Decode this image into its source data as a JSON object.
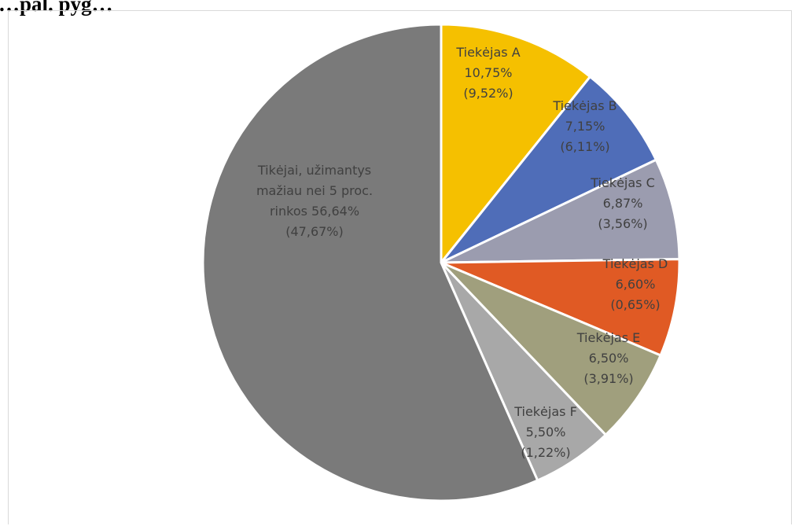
{
  "heading": "…pal. pyg…",
  "chart_data": {
    "type": "pie",
    "title": "",
    "start_angle_deg": 0,
    "direction": "clockwise",
    "slices": [
      {
        "name": "Tiekėjas A",
        "value": 10.75,
        "label_lines": [
          "Tiekėjas A",
          "10,75%",
          "(9,52%)"
        ],
        "color": "#f5c000"
      },
      {
        "name": "Tiekėjas B",
        "value": 7.15,
        "label_lines": [
          "Tiekėjas B",
          "7,15%",
          "(6,11%)"
        ],
        "color": "#4f6db8"
      },
      {
        "name": "Tiekėjas C",
        "value": 6.87,
        "label_lines": [
          "Tiekėjas C",
          "6,87%",
          "(3,56%)"
        ],
        "color": "#9b9caf"
      },
      {
        "name": "Tiekėjas D",
        "value": 6.6,
        "label_lines": [
          "Tiekėjas D",
          "6,60%",
          "(0,65%)"
        ],
        "color": "#e05a24"
      },
      {
        "name": "Tiekėjas E",
        "value": 6.5,
        "label_lines": [
          "Tiekėjas E",
          "6,50%",
          "(3,91%)"
        ],
        "color": "#a09f7d"
      },
      {
        "name": "Tiekėjas F",
        "value": 5.5,
        "label_lines": [
          "Tiekėjas F",
          "5,50%",
          "(1,22%)"
        ],
        "color": "#a8a8a8"
      },
      {
        "name": "Tikėjai, užimantys mažiau nei 5 proc. rinkos",
        "value": 56.64,
        "label_lines": [
          "Tikėjai, užimantys",
          "mažiau nei 5 proc.",
          "rinkos 56,64%",
          "(47,67%)"
        ],
        "color": "#7a7a7a"
      }
    ]
  }
}
